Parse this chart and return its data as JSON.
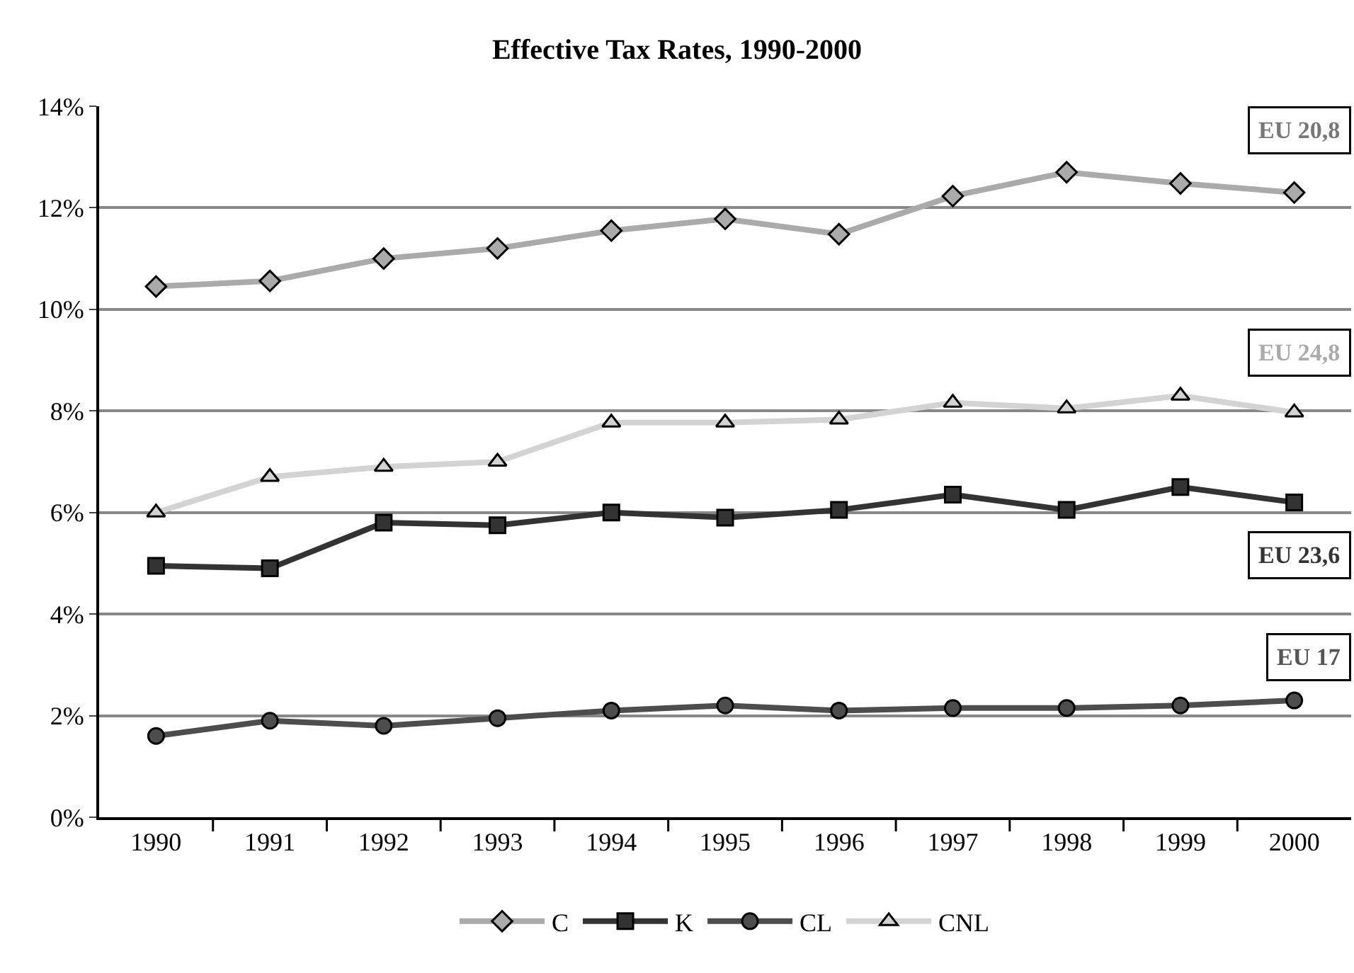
{
  "chart_data": {
    "type": "line",
    "title": "Effective Tax Rates, 1990-2000",
    "categories": [
      "1990",
      "1991",
      "1992",
      "1993",
      "1994",
      "1995",
      "1996",
      "1997",
      "1998",
      "1999",
      "2000"
    ],
    "series": [
      {
        "name": "C",
        "color": "#aaaaaa",
        "marker": "diamond",
        "values": [
          10.45,
          10.56,
          11.0,
          11.2,
          11.55,
          11.78,
          11.48,
          12.23,
          12.7,
          12.48,
          12.3
        ]
      },
      {
        "name": "K",
        "color": "#333333",
        "marker": "square",
        "values": [
          4.95,
          4.9,
          5.8,
          5.75,
          6.0,
          5.9,
          6.05,
          6.35,
          6.05,
          6.5,
          6.2
        ]
      },
      {
        "name": "CL",
        "color": "#4d4d4d",
        "marker": "circle",
        "values": [
          1.6,
          1.9,
          1.8,
          1.95,
          2.1,
          2.2,
          2.1,
          2.15,
          2.15,
          2.2,
          2.3
        ]
      },
      {
        "name": "CNL",
        "color": "#d3d3d3",
        "marker": "triangle",
        "values": [
          6.0,
          6.7,
          6.9,
          7.0,
          7.77,
          7.77,
          7.83,
          8.16,
          8.05,
          8.3,
          7.97
        ]
      }
    ],
    "ylim": [
      0,
      14
    ],
    "yticks": [
      {
        "value": 0,
        "label": "0%"
      },
      {
        "value": 2,
        "label": "2%"
      },
      {
        "value": 4,
        "label": "4%"
      },
      {
        "value": 6,
        "label": "6%"
      },
      {
        "value": 8,
        "label": "8%"
      },
      {
        "value": 10,
        "label": "10%"
      },
      {
        "value": 12,
        "label": "12%"
      },
      {
        "value": 14,
        "label": "14%"
      }
    ],
    "grid": "y",
    "legend": "bottom",
    "line_style": "solid",
    "annotations": [
      "EU 20,8",
      "EU 24,8",
      "EU 23,6",
      "EU 17"
    ]
  }
}
